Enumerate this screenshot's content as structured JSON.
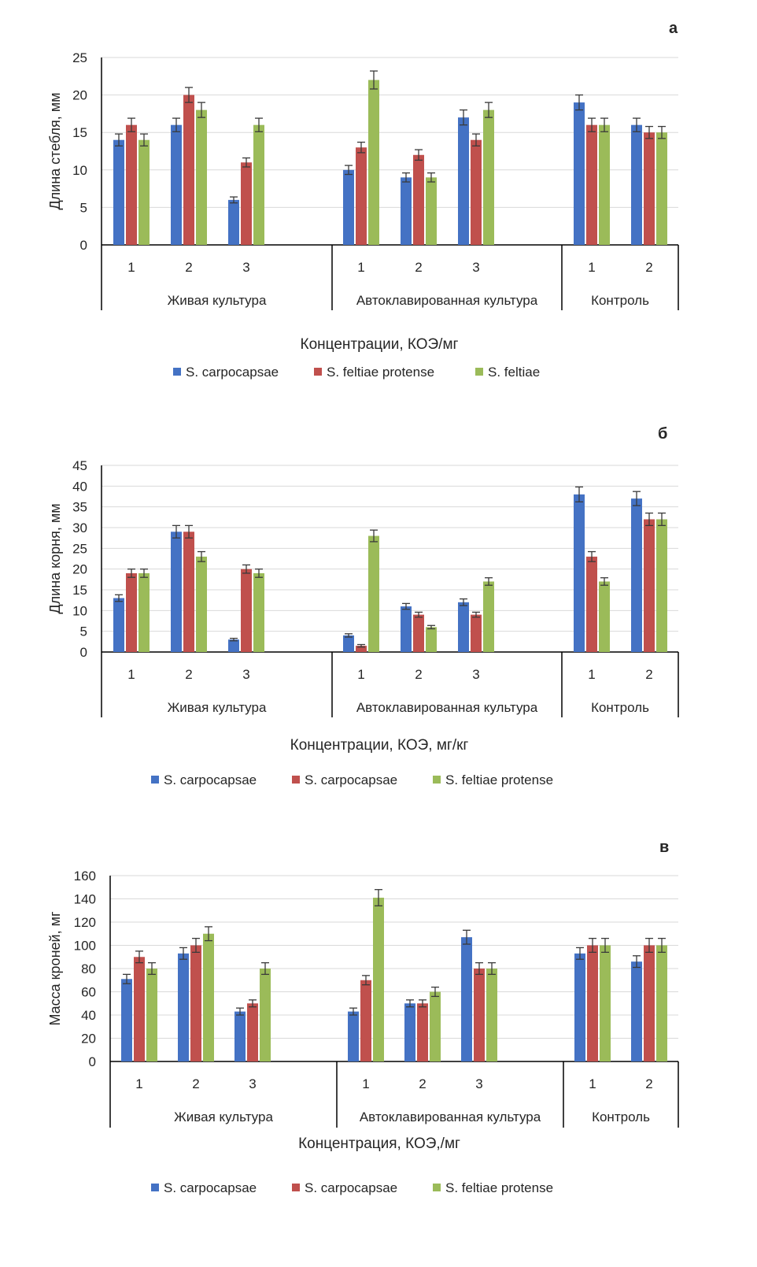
{
  "colors": {
    "s1": "#4472C4",
    "s2": "#C0504D",
    "s3": "#9BBB59",
    "grid": "#D9D9D9",
    "axis": "#000000"
  },
  "chart_data": [
    {
      "type": "bar",
      "panel": "а",
      "ylabel": "Длина стебля, мм",
      "xlabel": "Концентрации, КОЭ/мг",
      "ylim": [
        0,
        25
      ],
      "yticks": [
        "0",
        "5",
        "10",
        "15",
        "20",
        "25"
      ],
      "yvalues": [
        0,
        5,
        10,
        15,
        20,
        25
      ],
      "groups": [
        {
          "label": "Живая культура",
          "categories": [
            "1",
            "2",
            "3"
          ]
        },
        {
          "label": "Автоклавированная культура",
          "categories": [
            "1",
            "2",
            "3"
          ]
        },
        {
          "label": "Контроль",
          "categories": [
            "1",
            "2"
          ]
        }
      ],
      "series": [
        {
          "name": "S. carpocapsae",
          "color": "#4472C4",
          "values": [
            14,
            16,
            6,
            10,
            9,
            17,
            19,
            16
          ],
          "errors": [
            0.8,
            0.9,
            0.4,
            0.6,
            0.6,
            1,
            1,
            0.9
          ]
        },
        {
          "name": "S. feltiae protense",
          "color": "#C0504D",
          "values": [
            16,
            20,
            11,
            13,
            12,
            14,
            16,
            15
          ],
          "errors": [
            0.9,
            1,
            0.6,
            0.7,
            0.7,
            0.8,
            0.9,
            0.8
          ]
        },
        {
          "name": "S. feltiae",
          "color": "#9BBB59",
          "values": [
            14,
            18,
            16,
            22,
            9,
            18,
            16,
            15
          ],
          "errors": [
            0.8,
            1,
            0.9,
            1.2,
            0.6,
            1,
            0.9,
            0.8
          ]
        }
      ]
    },
    {
      "type": "bar",
      "panel": "б",
      "ylabel": "Длина корня, мм",
      "xlabel": "Концентрации, КОЭ, мг/кг",
      "ylim": [
        0,
        45
      ],
      "yticks": [
        "0",
        "5",
        "10",
        "15",
        "20",
        "25",
        "30",
        "35",
        "40",
        "45"
      ],
      "yvalues": [
        0,
        5,
        10,
        15,
        20,
        25,
        30,
        35,
        40,
        45
      ],
      "groups": [
        {
          "label": "Живая культура",
          "categories": [
            "1",
            "2",
            "3"
          ]
        },
        {
          "label": "Автоклавированная культура",
          "categories": [
            "1",
            "2",
            "3"
          ]
        },
        {
          "label": "Контроль",
          "categories": [
            "1",
            "2"
          ]
        }
      ],
      "series": [
        {
          "name": "S. carpocapsae",
          "color": "#4472C4",
          "values": [
            13,
            29,
            3,
            4,
            11,
            12,
            38,
            37
          ],
          "errors": [
            0.8,
            1.5,
            0.3,
            0.4,
            0.7,
            0.8,
            1.8,
            1.7
          ]
        },
        {
          "name": "S. carpocapsae",
          "color": "#C0504D",
          "values": [
            19,
            29,
            20,
            1.5,
            9,
            9,
            23,
            32
          ],
          "errors": [
            1,
            1.5,
            1,
            0.3,
            0.6,
            0.6,
            1.2,
            1.5
          ]
        },
        {
          "name": "S. feltiae protense",
          "color": "#9BBB59",
          "values": [
            19,
            23,
            19,
            28,
            6,
            17,
            17,
            32
          ],
          "errors": [
            1,
            1.2,
            1,
            1.4,
            0.4,
            0.9,
            0.9,
            1.5
          ]
        }
      ]
    },
    {
      "type": "bar",
      "panel": "в",
      "ylabel": "Масса кроней, мг",
      "xlabel": "Концентрация, КОЭ,/мг",
      "ylim": [
        0,
        160
      ],
      "yticks": [
        "0",
        "20",
        "40",
        "60",
        "80",
        "100",
        "120",
        "140",
        "160"
      ],
      "yvalues": [
        0,
        20,
        40,
        60,
        80,
        100,
        120,
        140,
        160
      ],
      "groups": [
        {
          "label": "Живая культура",
          "categories": [
            "1",
            "2",
            "3"
          ]
        },
        {
          "label": "Автоклавированная культура",
          "categories": [
            "1",
            "2",
            "3"
          ]
        },
        {
          "label": "Контроль",
          "categories": [
            "1",
            "2"
          ]
        }
      ],
      "series": [
        {
          "name": "S. carpocapsae",
          "color": "#4472C4",
          "values": [
            71,
            93,
            43,
            43,
            50,
            107,
            93,
            86
          ],
          "errors": [
            4,
            5,
            3,
            3,
            3,
            6,
            5,
            5
          ]
        },
        {
          "name": "S. carpocapsae",
          "color": "#C0504D",
          "values": [
            90,
            100,
            50,
            70,
            50,
            80,
            100,
            100
          ],
          "errors": [
            5,
            6,
            3,
            4,
            3,
            5,
            6,
            6
          ]
        },
        {
          "name": "S. feltiae protense",
          "color": "#9BBB59",
          "values": [
            80,
            110,
            80,
            141,
            60,
            80,
            100,
            100
          ],
          "errors": [
            5,
            6,
            5,
            7,
            4,
            5,
            6,
            6
          ]
        }
      ]
    }
  ]
}
